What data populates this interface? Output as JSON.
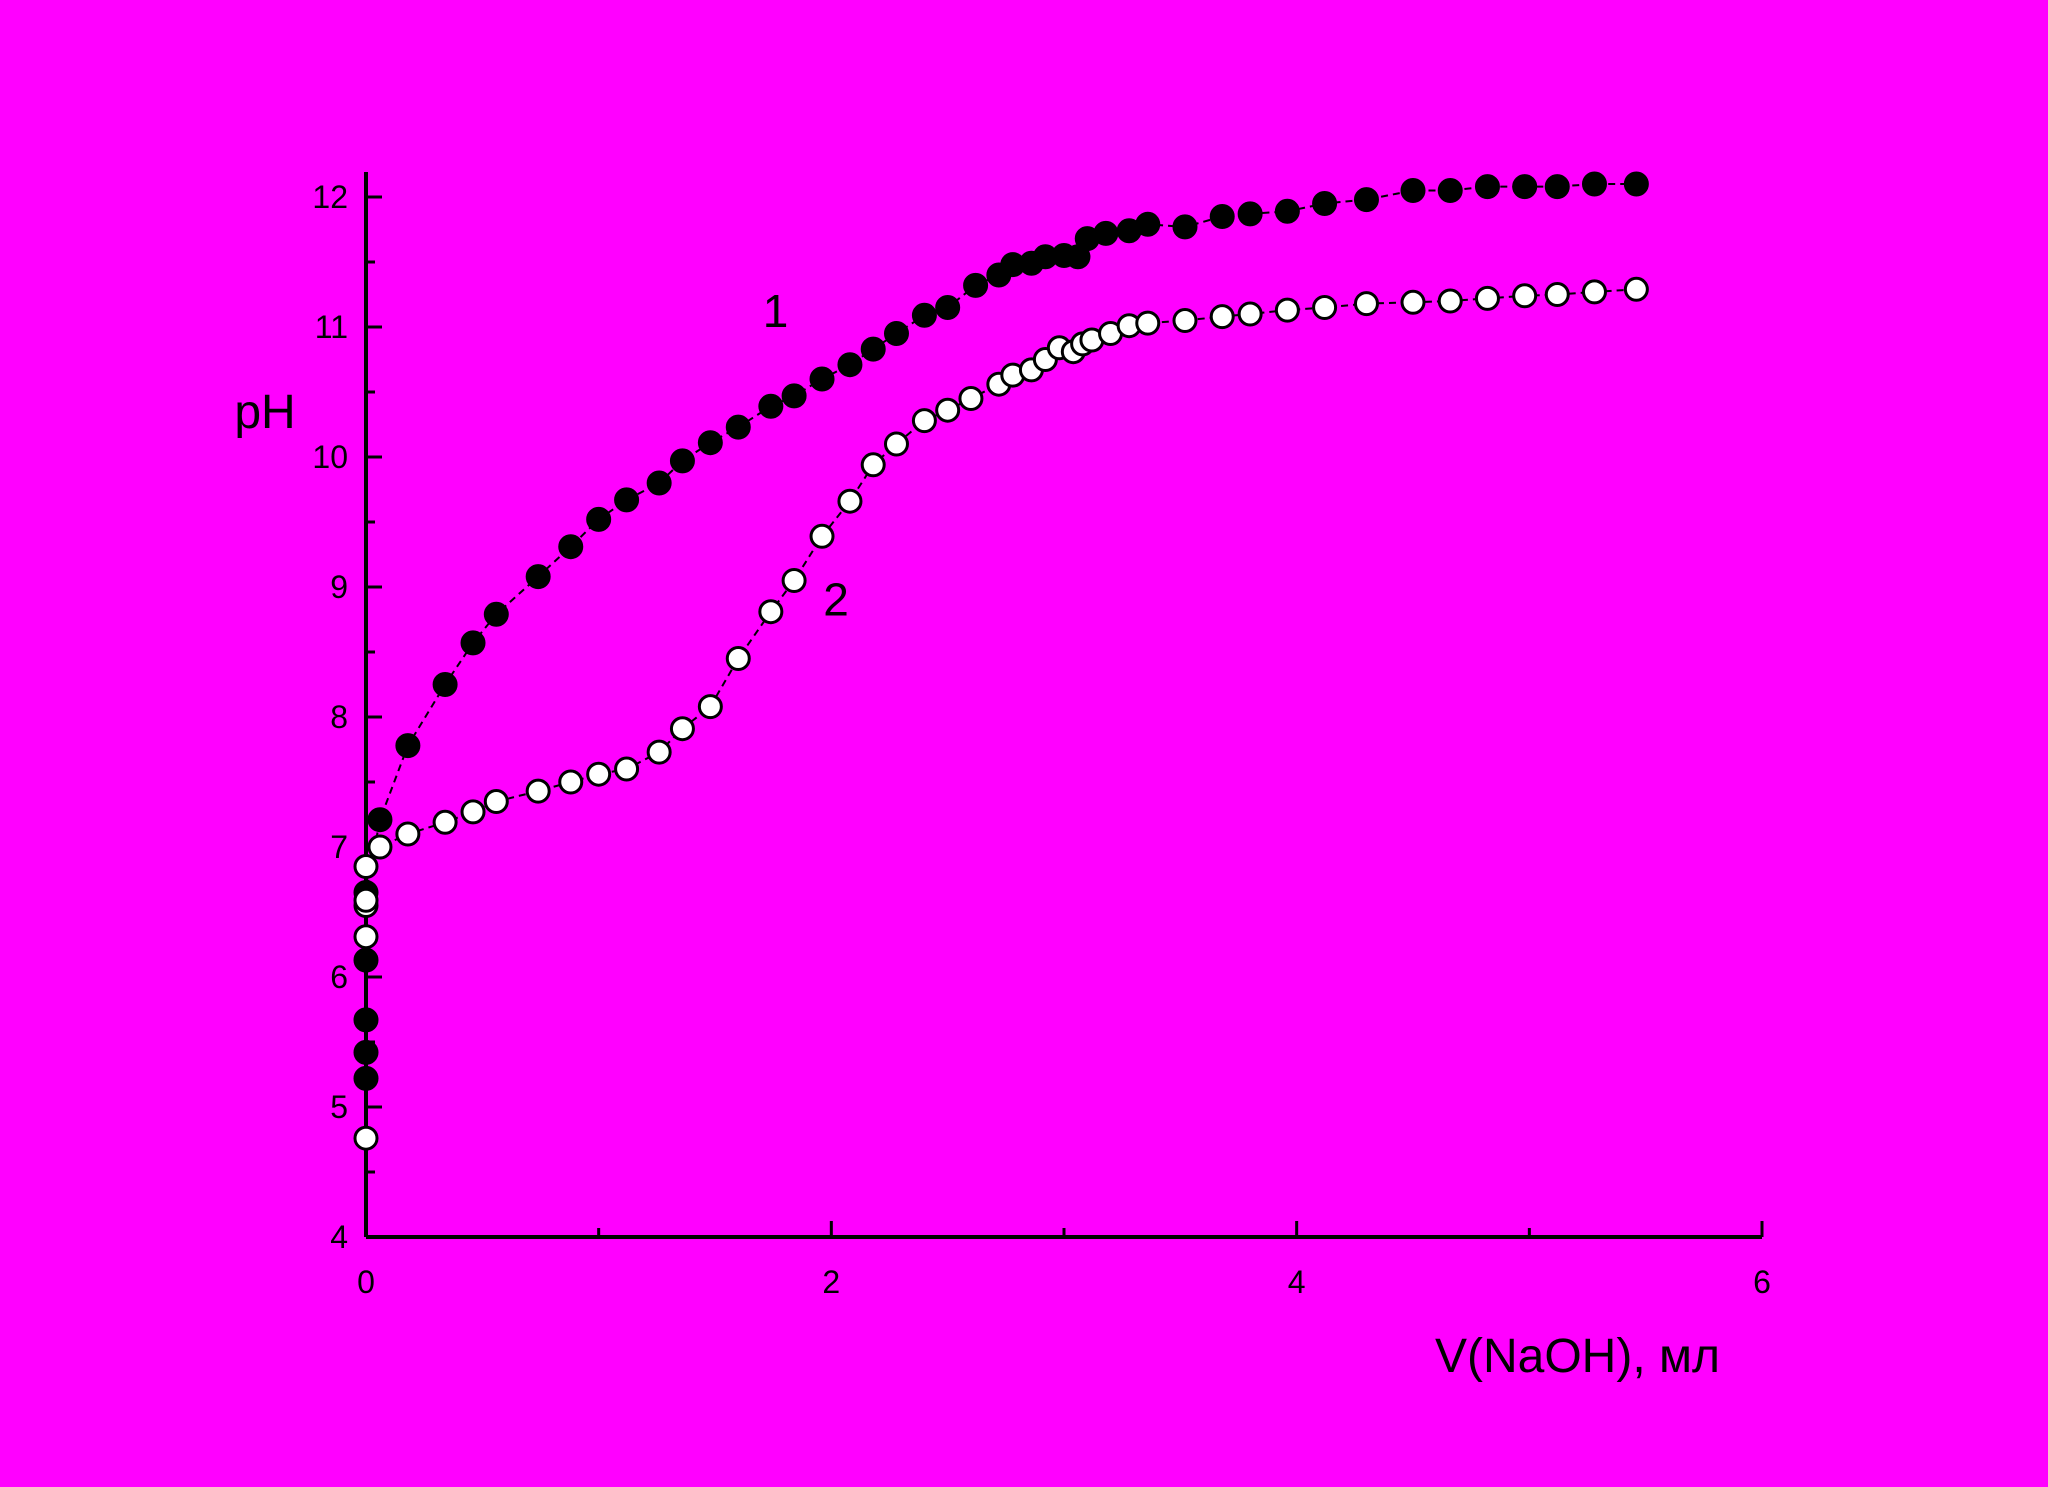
{
  "background_color": "#ff00ff",
  "chart_data": {
    "type": "scatter",
    "title": "",
    "xlabel": "V(NaOH), мл",
    "ylabel": "pH",
    "xlim": [
      0,
      6
    ],
    "ylim": [
      4,
      12.2
    ],
    "x_ticks": [
      0,
      2,
      4,
      6
    ],
    "x_tick_labels": [
      "0",
      "2",
      "4",
      "6"
    ],
    "y_ticks": [
      4,
      5,
      6,
      7,
      8,
      9,
      10,
      11,
      12
    ],
    "y_tick_labels": [
      "4",
      "5",
      "6",
      "7",
      "8",
      "9",
      "10",
      "11",
      "12"
    ],
    "grid": false,
    "legend": "none",
    "series": [
      {
        "name": "1",
        "marker": "filled-circle",
        "marker_color": "#000000",
        "line_style": "dashed",
        "label_at": [
          1.76,
          11.0
        ],
        "x": [
          0,
          0,
          0,
          0,
          0,
          0.06,
          0.18,
          0.34,
          0.46,
          0.56,
          0.74,
          0.88,
          1.0,
          1.12,
          1.26,
          1.36,
          1.48,
          1.6,
          1.74,
          1.84,
          1.96,
          2.08,
          2.18,
          2.28,
          2.4,
          2.5,
          2.62,
          2.72,
          2.78,
          2.86,
          2.92,
          3.0,
          3.06,
          3.1,
          3.18,
          3.28,
          3.36,
          3.52,
          3.68,
          3.8,
          3.96,
          4.12,
          4.3,
          4.5,
          4.66,
          4.82,
          4.98,
          5.12,
          5.28,
          5.46
        ],
        "y": [
          5.22,
          5.42,
          5.67,
          6.13,
          6.65,
          7.21,
          7.78,
          8.25,
          8.57,
          8.79,
          9.08,
          9.31,
          9.52,
          9.67,
          9.8,
          9.97,
          10.11,
          10.23,
          10.39,
          10.47,
          10.6,
          10.71,
          10.83,
          10.95,
          11.09,
          11.15,
          11.32,
          11.4,
          11.48,
          11.49,
          11.54,
          11.55,
          11.54,
          11.68,
          11.72,
          11.74,
          11.79,
          11.77,
          11.85,
          11.87,
          11.89,
          11.95,
          11.98,
          12.05,
          12.05,
          12.08,
          12.08,
          12.08,
          12.1,
          12.1
        ]
      },
      {
        "name": "2",
        "marker": "open-circle",
        "marker_color": "#ffffff",
        "line_style": "dashed",
        "label_at": [
          2.02,
          8.78
        ],
        "x": [
          0,
          0,
          0,
          0,
          0,
          0.06,
          0.18,
          0.34,
          0.46,
          0.56,
          0.74,
          0.88,
          1.0,
          1.12,
          1.26,
          1.36,
          1.48,
          1.6,
          1.74,
          1.84,
          1.96,
          2.08,
          2.18,
          2.28,
          2.4,
          2.5,
          2.6,
          2.72,
          2.78,
          2.86,
          2.92,
          2.98,
          3.04,
          3.08,
          3.12,
          3.2,
          3.28,
          3.36,
          3.52,
          3.68,
          3.8,
          3.96,
          4.12,
          4.3,
          4.5,
          4.66,
          4.82,
          4.98,
          5.12,
          5.28,
          5.46
        ],
        "y": [
          4.76,
          6.31,
          6.55,
          6.59,
          6.85,
          7.0,
          7.1,
          7.19,
          7.27,
          7.35,
          7.43,
          7.5,
          7.56,
          7.6,
          7.73,
          7.91,
          8.08,
          8.45,
          8.81,
          9.05,
          9.39,
          9.66,
          9.94,
          10.1,
          10.28,
          10.36,
          10.45,
          10.56,
          10.63,
          10.67,
          10.75,
          10.84,
          10.81,
          10.87,
          10.9,
          10.95,
          11.01,
          11.03,
          11.05,
          11.08,
          11.1,
          11.13,
          11.15,
          11.18,
          11.19,
          11.2,
          11.22,
          11.24,
          11.25,
          11.27,
          11.29
        ]
      }
    ]
  }
}
